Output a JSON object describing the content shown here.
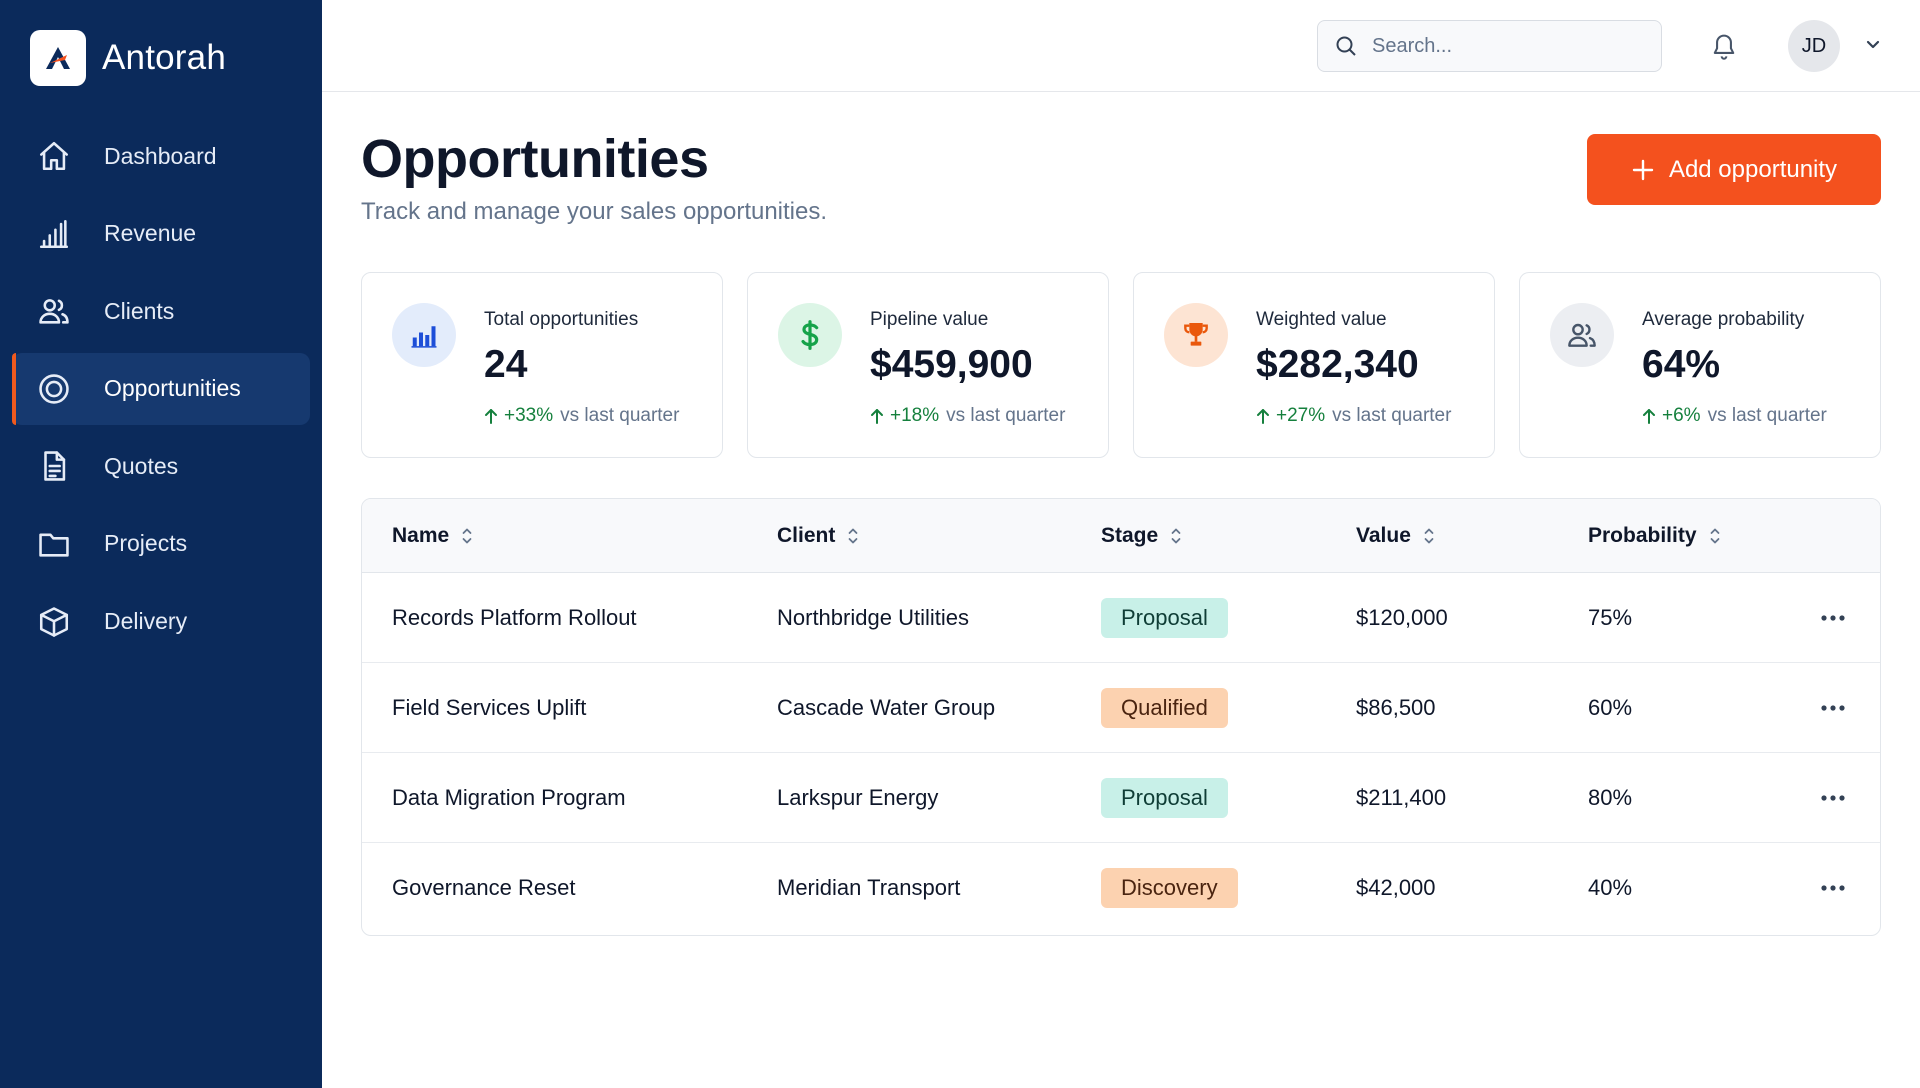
{
  "brand": {
    "name": "Antorah",
    "logo_letter": "A"
  },
  "sidebar": {
    "items": [
      {
        "label": "Dashboard",
        "icon": "home-icon",
        "active": false
      },
      {
        "label": "Revenue",
        "icon": "bar-chart-icon",
        "active": false
      },
      {
        "label": "Clients",
        "icon": "users-icon",
        "active": false
      },
      {
        "label": "Opportunities",
        "icon": "target-icon",
        "active": true
      },
      {
        "label": "Quotes",
        "icon": "document-icon",
        "active": false
      },
      {
        "label": "Projects",
        "icon": "folder-icon",
        "active": false
      },
      {
        "label": "Delivery",
        "icon": "box-icon",
        "active": false
      }
    ]
  },
  "topbar": {
    "search_placeholder": "Search...",
    "avatar_initials": "JD"
  },
  "header": {
    "title": "Opportunities",
    "subtitle": "Track and manage your sales opportunities.",
    "add_button_label": "Add opportunity"
  },
  "stats": [
    {
      "label": "Total opportunities",
      "value": "24",
      "delta": "+33%",
      "delta_suffix": "vs last quarter",
      "icon": "bar-chart-icon",
      "icon_bg": "#e3ecfb",
      "icon_color": "#1d4ed8"
    },
    {
      "label": "Pipeline value",
      "value": "$459,900",
      "delta": "+18%",
      "delta_suffix": "vs last quarter",
      "icon": "dollar-icon",
      "icon_bg": "#dcf5e6",
      "icon_color": "#16a34a"
    },
    {
      "label": "Weighted value",
      "value": "$282,340",
      "delta": "+27%",
      "delta_suffix": "vs last quarter",
      "icon": "trophy-icon",
      "icon_bg": "#fde4d3",
      "icon_color": "#ea580c"
    },
    {
      "label": "Average probability",
      "value": "64%",
      "delta": "+6%",
      "delta_suffix": "vs last quarter",
      "icon": "users-icon",
      "icon_bg": "#eceef2",
      "icon_color": "#475569"
    }
  ],
  "table": {
    "columns": [
      "Name",
      "Client",
      "Stage",
      "Value",
      "Probability"
    ],
    "rows": [
      {
        "name": "Records Platform Rollout",
        "client": "Northbridge Utilities",
        "stage": "Proposal",
        "value": "$120,000",
        "probability": "75%"
      },
      {
        "name": "Field Services Uplift",
        "client": "Cascade Water Group",
        "stage": "Qualified",
        "value": "$86,500",
        "probability": "60%"
      },
      {
        "name": "Data Migration Program",
        "client": "Larkspur Energy",
        "stage": "Proposal",
        "value": "$211,400",
        "probability": "80%"
      },
      {
        "name": "Governance Reset",
        "client": "Meridian Transport",
        "stage": "Discovery",
        "value": "$42,000",
        "probability": "40%"
      }
    ]
  },
  "stage_colors": {
    "Proposal": {
      "bg": "#c8f0e8",
      "fg": "#0f3d36"
    },
    "Qualified": {
      "bg": "#fcd2b0",
      "fg": "#4a2410"
    },
    "Discovery": {
      "bg": "#fcd2b0",
      "fg": "#4a2410"
    }
  },
  "colors": {
    "sidebar_bg": "#0b2a5b",
    "accent": "#f4511e",
    "positive": "#15803d"
  }
}
